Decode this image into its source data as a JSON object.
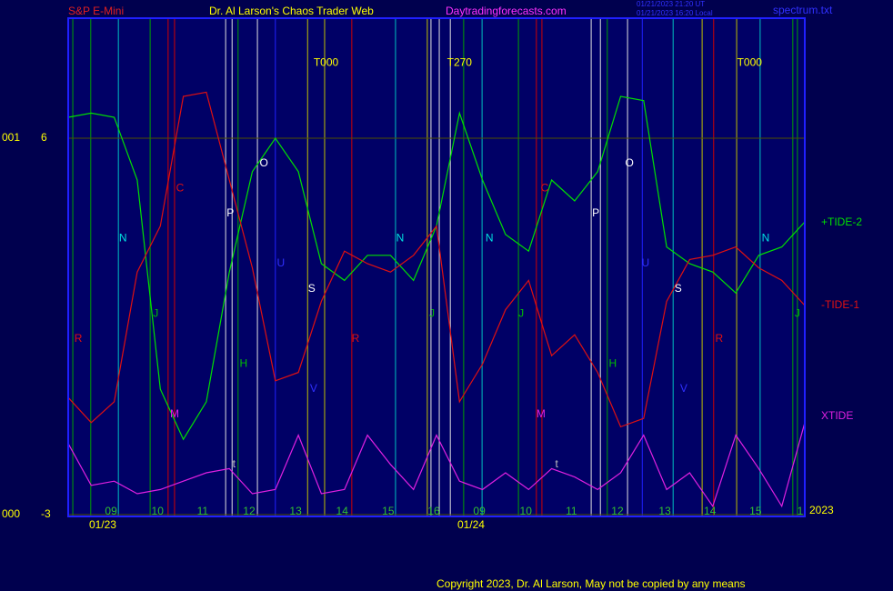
{
  "header": {
    "left": "S&P E-Mini",
    "center": "Dr. Al Larson's Chaos Trader Web",
    "site": "Daytradingforecasts.com",
    "stamp": [
      "01/21/2023 21:20 UT",
      "01/21/2023 16:20 Local"
    ],
    "file": "spectrum.txt"
  },
  "footer": "Copyright 2023, Dr. Al Larson, May not be copied by any means",
  "chart_data": {
    "type": "line",
    "x": [
      0,
      0.5,
      1,
      1.5,
      2,
      2.5,
      3,
      3.5,
      4,
      4.5,
      5,
      5.5,
      6,
      6.5,
      7,
      7.5,
      8,
      8.5,
      9,
      9.5,
      10,
      10.5,
      11,
      11.5,
      12,
      12.5,
      13,
      13.5,
      14,
      14.5,
      15,
      15.5,
      16
    ],
    "series": [
      {
        "name": "+TIDE-2",
        "color": "#00e000",
        "values": [
          6.5,
          6.6,
          6.5,
          5.0,
          0.0,
          -1.2,
          -0.3,
          2.8,
          5.2,
          6.0,
          5.2,
          3.0,
          2.6,
          3.2,
          3.2,
          2.6,
          3.9,
          6.6,
          5.0,
          3.7,
          3.3,
          5.0,
          4.5,
          5.2,
          7.0,
          6.9,
          3.4,
          3.0,
          2.8,
          2.3,
          3.2,
          3.4,
          4.0
        ]
      },
      {
        "name": "-TIDE-1",
        "color": "#e01010",
        "values": [
          -0.2,
          -0.8,
          -0.3,
          2.8,
          3.9,
          7.0,
          7.1,
          5.0,
          2.9,
          0.2,
          0.4,
          2.1,
          3.3,
          3.0,
          2.8,
          3.2,
          3.9,
          -0.3,
          0.6,
          1.9,
          2.6,
          0.8,
          1.3,
          0.4,
          -0.9,
          -0.7,
          2.1,
          3.1,
          3.2,
          3.4,
          2.9,
          2.6,
          2.0
        ]
      },
      {
        "name": "XTIDE",
        "color": "#e020e0",
        "values": [
          -1.3,
          -2.3,
          -2.2,
          -2.5,
          -2.4,
          -2.2,
          -2.0,
          -1.9,
          -2.5,
          -2.4,
          -1.1,
          -2.5,
          -2.4,
          -1.1,
          -1.8,
          -2.4,
          -1.1,
          -2.2,
          -2.4,
          -2.0,
          -2.4,
          -1.9,
          -2.1,
          -2.4,
          -2.0,
          -1.1,
          -2.4,
          -2.0,
          -2.8,
          -1.1,
          -1.9,
          -2.8,
          -0.8
        ]
      }
    ],
    "xlim": [
      0,
      16
    ],
    "ylim": [
      -3,
      8.87
    ],
    "yticks": [
      6,
      -3
    ],
    "y_left_labels": [
      "001",
      "000"
    ],
    "grid": true,
    "xticks": [
      {
        "value": 0.93,
        "label": "09"
      },
      {
        "value": 1.94,
        "label": "10"
      },
      {
        "value": 2.92,
        "label": "11"
      },
      {
        "value": 3.93,
        "label": "12"
      },
      {
        "value": 4.94,
        "label": "13"
      },
      {
        "value": 5.95,
        "label": "14"
      },
      {
        "value": 6.95,
        "label": "15"
      },
      {
        "value": 7.94,
        "label": "16"
      },
      {
        "value": 8.93,
        "label": "09"
      },
      {
        "value": 9.94,
        "label": "10"
      },
      {
        "value": 10.93,
        "label": "11"
      },
      {
        "value": 11.93,
        "label": "12"
      },
      {
        "value": 12.96,
        "label": "13"
      },
      {
        "value": 13.94,
        "label": "14"
      },
      {
        "value": 14.93,
        "label": "15"
      },
      {
        "value": 15.9,
        "label": "1"
      }
    ],
    "dates": [
      {
        "value": 0.75,
        "label": "01/23"
      },
      {
        "value": 8.75,
        "label": "01/24"
      }
    ],
    "year": "2023",
    "vlines": [
      {
        "x": 0.1,
        "color": "#00a000"
      },
      {
        "x": 0.49,
        "color": "#00a000"
      },
      {
        "x": 1.09,
        "color": "#00c0c0"
      },
      {
        "x": 1.78,
        "color": "#00a000"
      },
      {
        "x": 2.17,
        "color": "#d00000"
      },
      {
        "x": 2.31,
        "color": "#d00000"
      },
      {
        "x": 3.42,
        "color": "#e0e0e0"
      },
      {
        "x": 3.56,
        "color": "#e0e0e0"
      },
      {
        "x": 3.69,
        "color": "#00a000"
      },
      {
        "x": 4.11,
        "color": "#e0e0e0"
      },
      {
        "x": 4.5,
        "color": "#2020ff"
      },
      {
        "x": 5.2,
        "color": "#c0c000"
      },
      {
        "x": 5.57,
        "color": "#c0c000"
      },
      {
        "x": 6.16,
        "color": "#d00000"
      },
      {
        "x": 7.11,
        "color": "#00c0c0"
      },
      {
        "x": 7.8,
        "color": "#c0c000"
      },
      {
        "x": 7.88,
        "color": "#e0e0e0"
      },
      {
        "x": 8.06,
        "color": "#e0e0e0"
      },
      {
        "x": 8.3,
        "color": "#e0e0e0"
      },
      {
        "x": 8.59,
        "color": "#00a000"
      },
      {
        "x": 8.99,
        "color": "#00c0c0"
      },
      {
        "x": 9.78,
        "color": "#00a000"
      },
      {
        "x": 10.17,
        "color": "#d00000"
      },
      {
        "x": 10.29,
        "color": "#d00000"
      },
      {
        "x": 11.36,
        "color": "#e0e0e0"
      },
      {
        "x": 11.56,
        "color": "#e0e0e0"
      },
      {
        "x": 11.71,
        "color": "#00a000"
      },
      {
        "x": 12.15,
        "color": "#e0e0e0"
      },
      {
        "x": 12.47,
        "color": "#2020ff"
      },
      {
        "x": 13.14,
        "color": "#00c0c0"
      },
      {
        "x": 13.77,
        "color": "#c0c000"
      },
      {
        "x": 14.02,
        "color": "#d00000"
      },
      {
        "x": 14.52,
        "color": "#c0c000"
      },
      {
        "x": 15.03,
        "color": "#00c0c0"
      },
      {
        "x": 15.74,
        "color": "#00a000"
      },
      {
        "x": 15.84,
        "color": "#00a000"
      }
    ],
    "annotations": [
      {
        "text": "T000",
        "x": 5.6,
        "y": 7.8,
        "color": "#ffff00"
      },
      {
        "text": "T270",
        "x": 8.5,
        "y": 7.8,
        "color": "#ffff00"
      },
      {
        "text": "T000",
        "x": 14.8,
        "y": 7.8,
        "color": "#ffff00"
      },
      {
        "text": "N",
        "x": 1.19,
        "y": 3.6,
        "color": "#00e0e0"
      },
      {
        "text": "C",
        "x": 2.43,
        "y": 4.8,
        "color": "#e01010"
      },
      {
        "text": "P",
        "x": 3.52,
        "y": 4.2,
        "color": "#ffffff"
      },
      {
        "text": "O",
        "x": 4.25,
        "y": 5.4,
        "color": "#ffffff"
      },
      {
        "text": "U",
        "x": 4.62,
        "y": 3.0,
        "color": "#3030ff"
      },
      {
        "text": "S",
        "x": 5.29,
        "y": 2.4,
        "color": "#ffffff"
      },
      {
        "text": "N",
        "x": 7.21,
        "y": 3.6,
        "color": "#00e0e0"
      },
      {
        "text": "R",
        "x": 0.22,
        "y": 1.2,
        "color": "#e01010"
      },
      {
        "text": "J",
        "x": 1.9,
        "y": 1.8,
        "color": "#00c000"
      },
      {
        "text": "M",
        "x": 2.31,
        "y": -0.6,
        "color": "#e020e0"
      },
      {
        "text": "H",
        "x": 3.81,
        "y": 0.6,
        "color": "#00c000"
      },
      {
        "text": "V",
        "x": 5.33,
        "y": 0.0,
        "color": "#3030ff"
      },
      {
        "text": "R",
        "x": 6.24,
        "y": 1.2,
        "color": "#e01010"
      },
      {
        "text": "t",
        "x": 3.6,
        "y": -1.8,
        "color": "#c0c0c0"
      },
      {
        "text": "J",
        "x": 7.9,
        "y": 1.8,
        "color": "#00c000"
      },
      {
        "text": "N",
        "x": 9.15,
        "y": 3.6,
        "color": "#00e0e0"
      },
      {
        "text": "C",
        "x": 10.35,
        "y": 4.8,
        "color": "#e01010"
      },
      {
        "text": "P",
        "x": 11.46,
        "y": 4.2,
        "color": "#ffffff"
      },
      {
        "text": "O",
        "x": 12.19,
        "y": 5.4,
        "color": "#ffffff"
      },
      {
        "text": "U",
        "x": 12.54,
        "y": 3.0,
        "color": "#3030ff"
      },
      {
        "text": "S",
        "x": 13.25,
        "y": 2.4,
        "color": "#ffffff"
      },
      {
        "text": "N",
        "x": 15.15,
        "y": 3.6,
        "color": "#00e0e0"
      },
      {
        "text": "J",
        "x": 9.84,
        "y": 1.8,
        "color": "#00c000"
      },
      {
        "text": "M",
        "x": 10.27,
        "y": -0.6,
        "color": "#e020e0"
      },
      {
        "text": "H",
        "x": 11.83,
        "y": 0.6,
        "color": "#00c000"
      },
      {
        "text": "V",
        "x": 13.37,
        "y": 0.0,
        "color": "#3030ff"
      },
      {
        "text": "R",
        "x": 14.14,
        "y": 1.2,
        "color": "#e01010"
      },
      {
        "text": "t",
        "x": 10.61,
        "y": -1.8,
        "color": "#c0c0c0"
      },
      {
        "text": "J",
        "x": 15.84,
        "y": 1.8,
        "color": "#00c000"
      }
    ]
  }
}
